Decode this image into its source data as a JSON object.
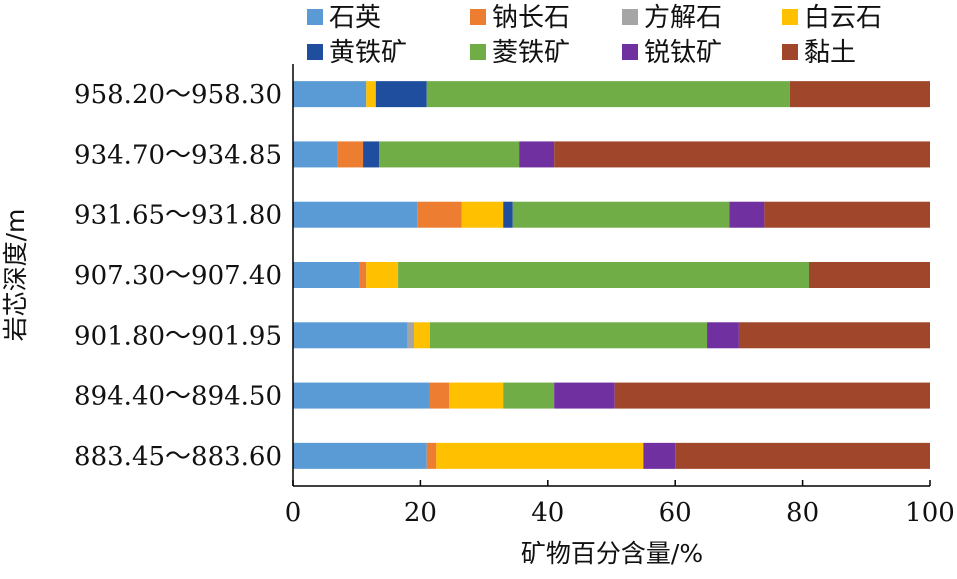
{
  "chart_data": {
    "type": "bar",
    "orientation": "horizontal",
    "stacked": true,
    "xlabel": "矿物百分含量/%",
    "ylabel": "岩芯深度/m",
    "xlim": [
      0,
      100
    ],
    "xticks": [
      0,
      20,
      40,
      60,
      80,
      100
    ],
    "grid": false,
    "legend_position": "top",
    "categories": [
      "958.20～958.30",
      "934.70～934.85",
      "931.65～931.80",
      "907.30～907.40",
      "901.80～901.95",
      "894.40～894.50",
      "883.45～883.60"
    ],
    "series": [
      {
        "name": "石英",
        "color": "#5B9BD5",
        "values": [
          11.5,
          7.0,
          19.5,
          10.5,
          18.0,
          21.5,
          21.0
        ]
      },
      {
        "name": "钠长石",
        "color": "#ED7D31",
        "values": [
          0,
          4.0,
          7.0,
          1.0,
          0,
          3.0,
          1.5
        ]
      },
      {
        "name": "方解石",
        "color": "#A5A5A5",
        "values": [
          0,
          0,
          0,
          0,
          1.0,
          0,
          0
        ]
      },
      {
        "name": "白云石",
        "color": "#FFC000",
        "values": [
          1.5,
          0,
          6.5,
          5.0,
          2.5,
          8.5,
          32.5
        ]
      },
      {
        "name": "黄铁矿",
        "color": "#1F4E9E",
        "values": [
          8.0,
          2.5,
          1.5,
          0,
          0,
          0,
          0
        ]
      },
      {
        "name": "菱铁矿",
        "color": "#70AD47",
        "values": [
          57.0,
          22.0,
          34.0,
          64.5,
          43.5,
          8.0,
          0
        ]
      },
      {
        "name": "锐钛矿",
        "color": "#7030A0",
        "values": [
          0,
          5.5,
          5.5,
          0,
          5.0,
          9.5,
          5.0
        ]
      },
      {
        "name": "黏土",
        "color": "#A0462A",
        "values": [
          22.0,
          59.0,
          26.0,
          19.0,
          30.0,
          49.5,
          40.0
        ]
      }
    ]
  }
}
